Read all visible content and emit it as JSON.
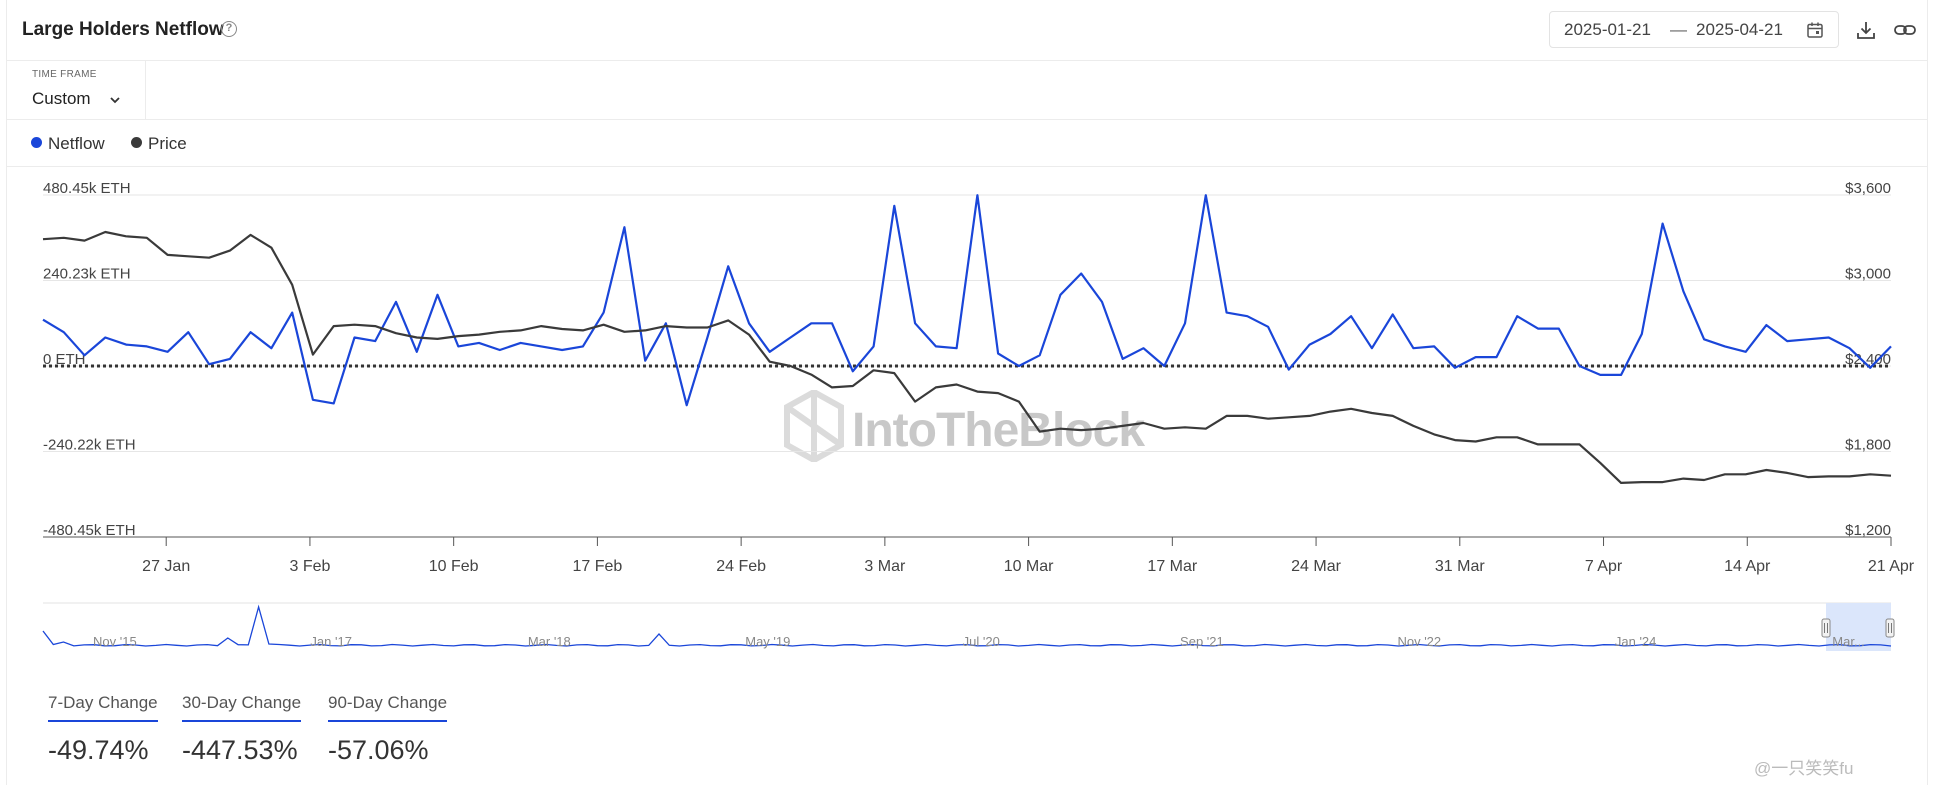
{
  "header": {
    "title": "Large Holders Netflow",
    "help_icon": "help-circle-icon",
    "date_start": "2025-01-21",
    "date_separator": "—",
    "date_end": "2025-04-21",
    "calendar_icon": "calendar-icon",
    "download_icon": "download-icon",
    "link_icon": "link-icon"
  },
  "timeframe": {
    "label": "TIME FRAME",
    "value": "Custom",
    "chevron_icon": "chevron-down-icon"
  },
  "legend": [
    {
      "label": "Netflow",
      "color": "#1a46d9"
    },
    {
      "label": "Price",
      "color": "#3a3a3a"
    }
  ],
  "watermark": "IntoTheBlock",
  "colors": {
    "netflow": "#1a46d9",
    "price": "#3a3a3a",
    "grid": "#e6e6e6",
    "zero_line": "#333333",
    "navigator_selection": "#dbe6fb"
  },
  "chart_data": [
    {
      "type": "line",
      "title": "Large Holders Netflow",
      "x_tick_labels": [
        "27 Jan",
        "3 Feb",
        "10 Feb",
        "17 Feb",
        "24 Feb",
        "3 Mar",
        "10 Mar",
        "17 Mar",
        "24 Mar",
        "31 Mar",
        "7 Apr",
        "14 Apr",
        "21 Apr"
      ],
      "x_range": [
        "2025-01-21",
        "2025-04-21"
      ],
      "y_left_ticks": [
        "480.45k ETH",
        "240.23k ETH",
        "0 ETH",
        "-240.22k ETH",
        "-480.45k ETH"
      ],
      "y_left_range": [
        -480450,
        480450
      ],
      "y_right_ticks": [
        "$3,600",
        "$3,000",
        "$2,400",
        "$1,800",
        "$1,200"
      ],
      "y_right_range": [
        1200,
        3600
      ],
      "grid": true,
      "series": [
        {
          "name": "Netflow",
          "axis": "left",
          "unit": "ETH",
          "values": [
            130000,
            95000,
            30000,
            80000,
            60000,
            55000,
            40000,
            95000,
            5000,
            20000,
            95000,
            50000,
            150000,
            -95000,
            -105000,
            80000,
            70000,
            180000,
            40000,
            200000,
            55000,
            65000,
            45000,
            65000,
            55000,
            45000,
            55000,
            150000,
            390000,
            15000,
            120000,
            -110000,
            80000,
            280000,
            120000,
            40000,
            80000,
            120000,
            120000,
            -15000,
            55000,
            450000,
            120000,
            55000,
            50000,
            480000,
            35000,
            0,
            30000,
            200000,
            260000,
            180000,
            20000,
            50000,
            0,
            120000,
            480000,
            150000,
            140000,
            110000,
            -10000,
            60000,
            90000,
            140000,
            50000,
            145000,
            50000,
            55000,
            -5000,
            25000,
            25000,
            140000,
            105000,
            105000,
            0,
            -25000,
            -25000,
            90000,
            400000,
            210000,
            75000,
            55000,
            40000,
            115000,
            70000,
            75000,
            80000,
            50000,
            -5000,
            55000
          ]
        },
        {
          "name": "Price",
          "axis": "right",
          "unit": "USD",
          "values": [
            3290,
            3300,
            3280,
            3340,
            3310,
            3300,
            3180,
            3170,
            3160,
            3210,
            3320,
            3230,
            2970,
            2480,
            2680,
            2690,
            2680,
            2630,
            2600,
            2590,
            2610,
            2620,
            2640,
            2650,
            2680,
            2660,
            2650,
            2690,
            2640,
            2650,
            2680,
            2670,
            2670,
            2720,
            2620,
            2430,
            2400,
            2340,
            2250,
            2260,
            2370,
            2350,
            2150,
            2250,
            2270,
            2220,
            2210,
            2150,
            1940,
            1960,
            1950,
            1960,
            1980,
            2000,
            1960,
            1970,
            1960,
            2050,
            2050,
            2030,
            2040,
            2050,
            2080,
            2100,
            2070,
            2050,
            1980,
            1920,
            1880,
            1870,
            1900,
            1900,
            1850,
            1850,
            1850,
            1720,
            1580,
            1585,
            1585,
            1610,
            1600,
            1640,
            1640,
            1670,
            1650,
            1620,
            1625,
            1625,
            1640,
            1630
          ]
        }
      ]
    },
    {
      "type": "area",
      "title": "",
      "x_tick_labels": [
        "Nov '15",
        "Jan '17",
        "Mar '18",
        "May '19",
        "Jul '20",
        "Sep '21",
        "Nov '22",
        "Jan '24",
        "Mar..."
      ],
      "selection": [
        "2025-01-21",
        "2025-04-21"
      ]
    }
  ],
  "stats": [
    {
      "label": "7-Day Change",
      "value": "-49.74%"
    },
    {
      "label": "30-Day Change",
      "value": "-447.53%"
    },
    {
      "label": "90-Day Change",
      "value": "-57.06%"
    }
  ],
  "footer": {
    "text": "@一只笑笑fu"
  }
}
